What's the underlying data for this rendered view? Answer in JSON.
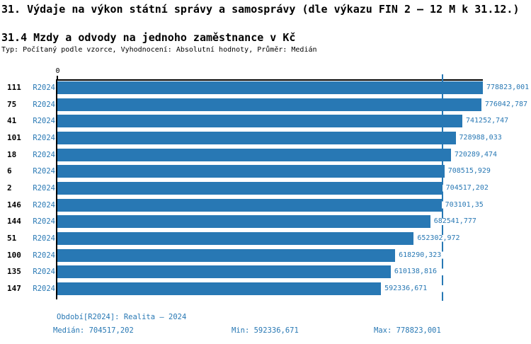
{
  "header": {
    "title": "31. Výdaje na výkon státní správy a samosprávy (dle výkazu FIN 2 – 12 M k 31.12.)",
    "subtitle": "31.4 Mzdy a odvody na jednoho zaměstnance v Kč",
    "type_line": "Typ: Počítaný podle vzorce, Vyhodnocení: Absolutní hodnoty, Průměr: Medián"
  },
  "chart_data": {
    "type": "bar",
    "orientation": "horizontal",
    "axis_zero_label": "0",
    "period_code": "R2024",
    "categories": [
      "111",
      "75",
      "41",
      "101",
      "18",
      "6",
      "2",
      "146",
      "144",
      "51",
      "100",
      "135",
      "147"
    ],
    "values": [
      778823.001,
      776042.787,
      741252.747,
      728988.033,
      720289.474,
      708515.929,
      704517.202,
      703101.35,
      682541.777,
      652302.972,
      618290.323,
      610138.816,
      592336.671
    ],
    "value_labels": [
      "778823,001",
      "776042,787",
      "741252,747",
      "728988,033",
      "720289,474",
      "708515,929",
      "704517,202",
      "703101,35",
      "682541,777",
      "652302,972",
      "618290,323",
      "610138,816",
      "592336,671"
    ],
    "xlim": [
      0,
      778823.001
    ],
    "median": 704517.202,
    "grid": false,
    "colors": {
      "bar": "#2878b4",
      "accent_text": "#2878b4",
      "axis": "#000000"
    }
  },
  "footer": {
    "period_line": "Období[R2024]: Realita – 2024",
    "median_label": "Medián: 704517,202",
    "min_label": "Min: 592336,671",
    "max_label": "Max: 778823,001"
  }
}
